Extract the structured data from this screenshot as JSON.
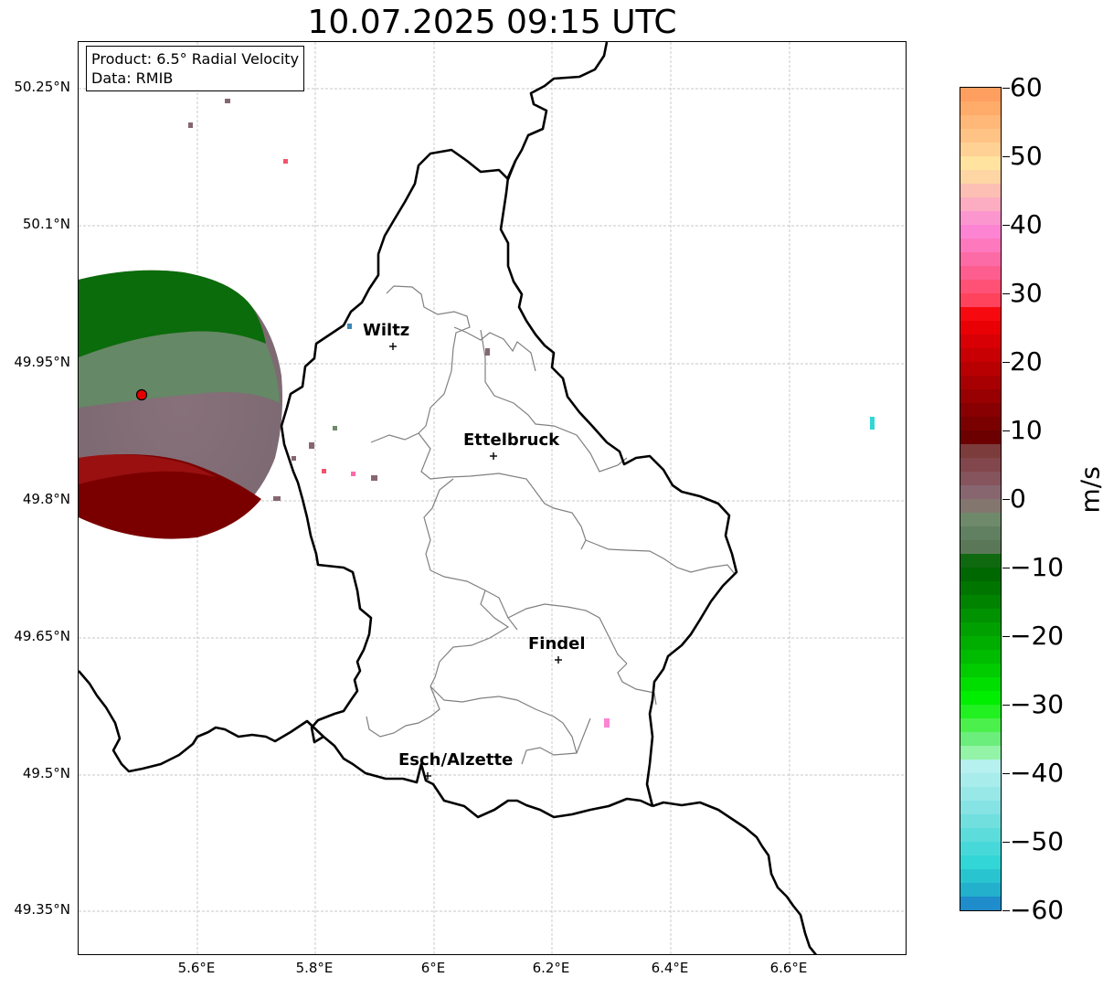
{
  "title": "10.07.2025 09:15 UTC",
  "info": {
    "product": "Product: 6.5° Radial Velocity",
    "data_source": "Data: RMIB"
  },
  "lat_labels": [
    "50.25°N",
    "50.1°N",
    "49.95°N",
    "49.8°N",
    "49.65°N",
    "49.5°N",
    "49.35°N"
  ],
  "lon_labels": [
    "5.6°E",
    "5.8°E",
    "6°E",
    "6.2°E",
    "6.4°E",
    "6.6°E"
  ],
  "cities": [
    {
      "name": "Wiltz"
    },
    {
      "name": "Ettelbruck"
    },
    {
      "name": "Findel"
    },
    {
      "name": "Esch/Alzette"
    }
  ],
  "colorbar": {
    "unit": "m/s",
    "ticks": [
      "60",
      "50",
      "40",
      "30",
      "20",
      "10",
      "0",
      "−10",
      "−20",
      "−30",
      "−40",
      "−50",
      "−60"
    ],
    "colors": [
      "#ff9f5f",
      "#ffab6a",
      "#ffb878",
      "#ffc386",
      "#ffd194",
      "#ffe39f",
      "#fdd6a4",
      "#fdbfb4",
      "#fcadc2",
      "#fc96cf",
      "#fc84d3",
      "#fd78bd",
      "#fd6ba6",
      "#fe5e8f",
      "#ff5175",
      "#ff435c",
      "#f70a0f",
      "#e80005",
      "#d80004",
      "#c80003",
      "#b80002",
      "#a80002",
      "#980001",
      "#880001",
      "#7a0000",
      "#6c0000",
      "#7d3c3c",
      "#82474c",
      "#85545d",
      "#876670",
      "#83766f",
      "#6e8a6a",
      "#618062",
      "#5a7858",
      "#0f6a0f",
      "#006800",
      "#007600",
      "#008400",
      "#009200",
      "#00a000",
      "#00ae00",
      "#00bc00",
      "#00cc00",
      "#00de00",
      "#00ee00",
      "#21f021",
      "#4cf04c",
      "#6bee7b",
      "#93f3a7",
      "#b6f0ef",
      "#a8ecec",
      "#98e8e8",
      "#86e3e3",
      "#72dfdf",
      "#5ddcdc",
      "#47d9d9",
      "#32d6d6",
      "#28c5d0",
      "#23b0cc",
      "#1f8ccb"
    ]
  },
  "radar": {
    "site": "radar-site"
  }
}
